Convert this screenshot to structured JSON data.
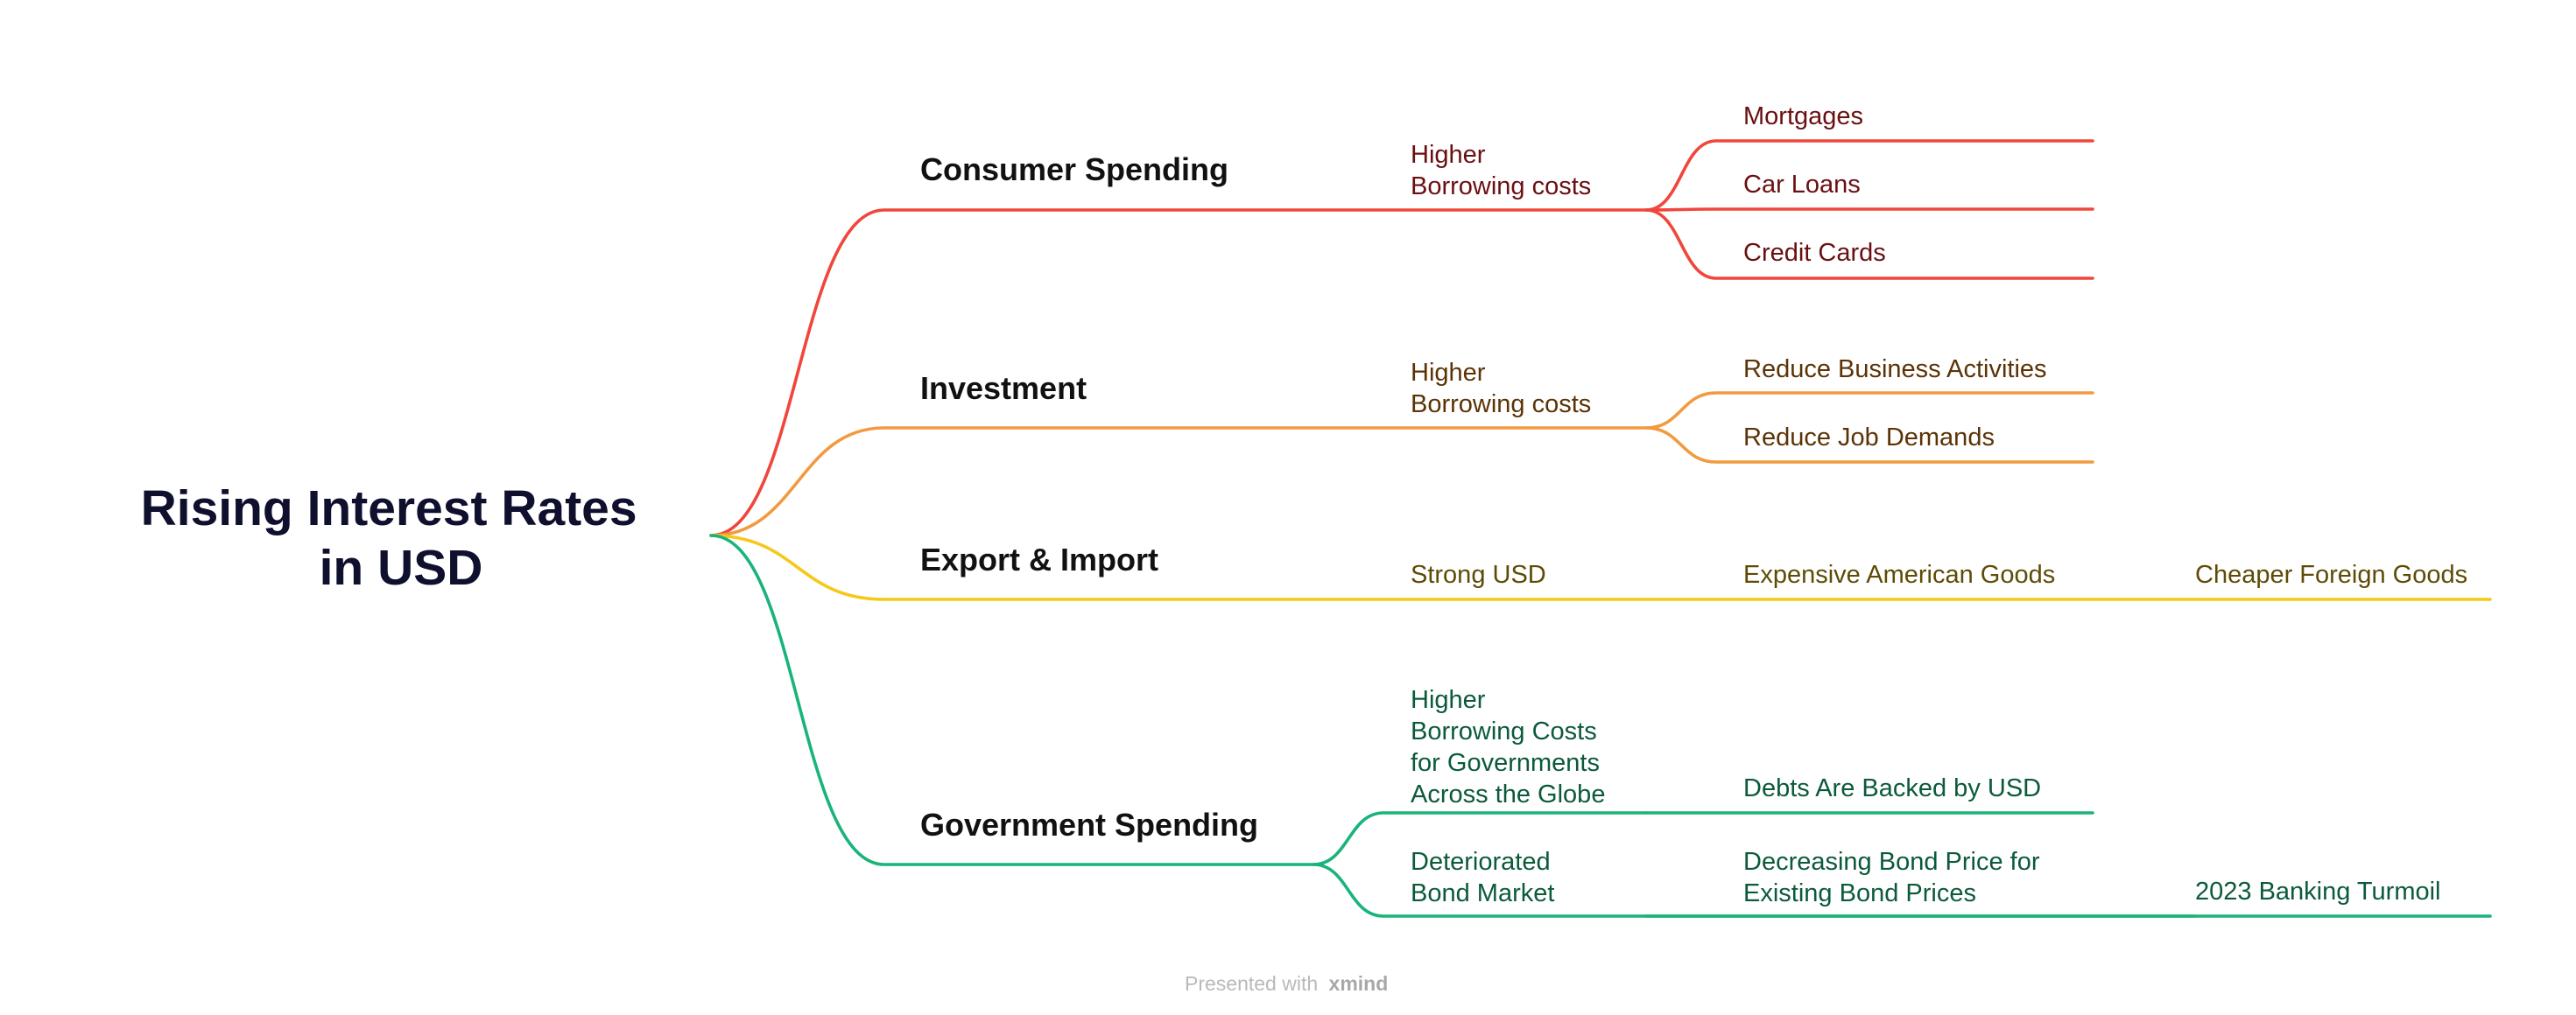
{
  "root": {
    "lines": [
      "Rising Interest Rates",
      "in USD"
    ]
  },
  "branches": [
    {
      "id": "consumer",
      "label": "Consumer Spending",
      "line_color": "#f0463c",
      "text_color": "#6a0f12",
      "nodes": [
        {
          "id": "c1",
          "lines": [
            "Higher",
            "Borrowing costs"
          ]
        },
        {
          "id": "c1a",
          "lines": [
            "Mortgages"
          ]
        },
        {
          "id": "c1b",
          "lines": [
            "Car Loans"
          ]
        },
        {
          "id": "c1c",
          "lines": [
            "Credit Cards"
          ]
        }
      ]
    },
    {
      "id": "investment",
      "label": "Investment",
      "line_color": "#f29a3f",
      "text_color": "#5c3306",
      "nodes": [
        {
          "id": "i1",
          "lines": [
            "Higher",
            "Borrowing costs"
          ]
        },
        {
          "id": "i1a",
          "lines": [
            "Reduce Business Activities"
          ]
        },
        {
          "id": "i1b",
          "lines": [
            "Reduce Job Demands"
          ]
        }
      ]
    },
    {
      "id": "trade",
      "label": "Export & Import",
      "line_color": "#f5c819",
      "text_color": "#5e4b06",
      "nodes": [
        {
          "id": "t1",
          "lines": [
            "Strong USD"
          ]
        },
        {
          "id": "t2",
          "lines": [
            "Expensive American Goods"
          ]
        },
        {
          "id": "t3",
          "lines": [
            "Cheaper Foreign Goods"
          ]
        }
      ]
    },
    {
      "id": "government",
      "label": "Government Spending",
      "line_color": "#19b47a",
      "text_color": "#0b5a3a",
      "nodes": [
        {
          "id": "g1",
          "lines": [
            "Higher",
            "Borrowing Costs",
            "for Governments",
            "Across the Globe"
          ]
        },
        {
          "id": "g1a",
          "lines": [
            "Debts Are Backed by USD"
          ]
        },
        {
          "id": "g2",
          "lines": [
            "Deteriorated",
            "Bond Market"
          ]
        },
        {
          "id": "g2a",
          "lines": [
            "Decreasing Bond Price for",
            "Existing Bond Prices"
          ]
        },
        {
          "id": "g2b",
          "lines": [
            "2023 Banking Turmoil"
          ]
        }
      ]
    }
  ],
  "footer": {
    "prefix": "Presented with",
    "brand": "xmind"
  }
}
